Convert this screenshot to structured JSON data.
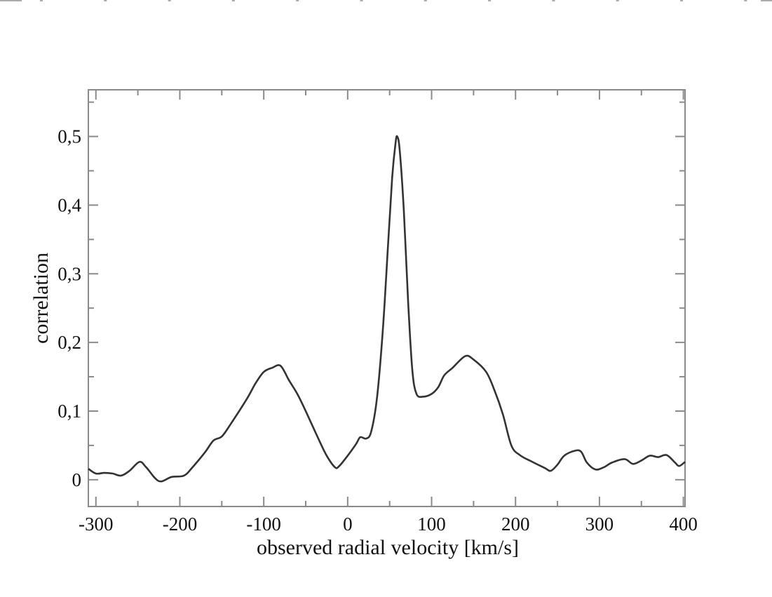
{
  "chart_data": {
    "type": "line",
    "title": "",
    "xlabel": "observed radial velocity [km/s]",
    "ylabel": "correlation",
    "xlim": [
      -309,
      402
    ],
    "ylim": [
      -0.039,
      0.568
    ],
    "grid": false,
    "x_ticks": [
      -300,
      -200,
      -100,
      0,
      100,
      200,
      300,
      400
    ],
    "x_tick_labels": [
      "-300",
      "-200",
      "-100",
      "0",
      "100",
      "200",
      "300",
      "400"
    ],
    "y_ticks": [
      0,
      0.1,
      0.2,
      0.3,
      0.4,
      0.5
    ],
    "y_tick_labels": [
      "0",
      "0,1",
      "0,2",
      "0,3",
      "0,4",
      "0,5"
    ],
    "series": [
      {
        "name": "correlation",
        "color": "#333333",
        "x": [
          -309,
          -300,
          -290,
          -280,
          -270,
          -260,
          -248,
          -240,
          -225,
          -210,
          -195,
          -185,
          -170,
          -160,
          -150,
          -140,
          -120,
          -110,
          -100,
          -90,
          -80,
          -70,
          -60,
          -50,
          -35,
          -25,
          -15,
          -10,
          0,
          10,
          15,
          22,
          28,
          35,
          42,
          48,
          53,
          57,
          59,
          62,
          67,
          72,
          77,
          82,
          90,
          100,
          108,
          115,
          125,
          140,
          150,
          165,
          175,
          185,
          195,
          205,
          220,
          235,
          242,
          250,
          258,
          270,
          278,
          285,
          295,
          305,
          315,
          330,
          340,
          350,
          360,
          370,
          380,
          390,
          395,
          402
        ],
        "y": [
          0.016,
          0.009,
          0.01,
          0.009,
          0.006,
          0.013,
          0.026,
          0.018,
          -0.002,
          0.004,
          0.006,
          0.018,
          0.04,
          0.057,
          0.063,
          0.08,
          0.118,
          0.14,
          0.157,
          0.163,
          0.166,
          0.145,
          0.125,
          0.1,
          0.06,
          0.035,
          0.018,
          0.02,
          0.035,
          0.052,
          0.062,
          0.06,
          0.07,
          0.12,
          0.22,
          0.34,
          0.44,
          0.49,
          0.5,
          0.48,
          0.39,
          0.26,
          0.16,
          0.125,
          0.121,
          0.125,
          0.135,
          0.152,
          0.163,
          0.18,
          0.175,
          0.157,
          0.13,
          0.095,
          0.05,
          0.036,
          0.026,
          0.017,
          0.013,
          0.022,
          0.035,
          0.042,
          0.041,
          0.025,
          0.015,
          0.018,
          0.025,
          0.03,
          0.023,
          0.028,
          0.035,
          0.033,
          0.036,
          0.025,
          0.02,
          0.026
        ]
      }
    ]
  }
}
